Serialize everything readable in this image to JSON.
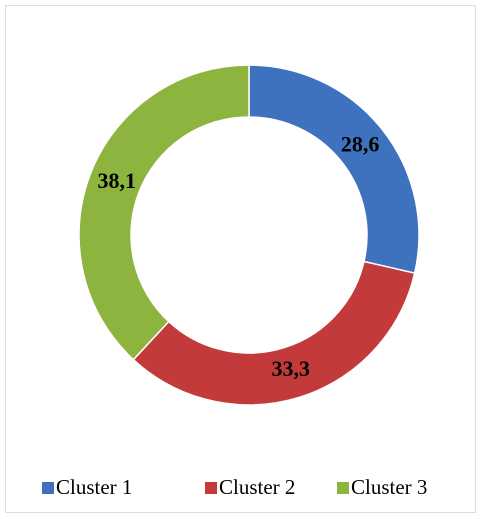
{
  "chart_data": {
    "type": "donut",
    "categories": [
      "Cluster 1",
      "Cluster 2",
      "Cluster 3"
    ],
    "values": [
      28.6,
      33.3,
      38.1
    ],
    "value_labels": [
      "28,6",
      "33,3",
      "38,1"
    ],
    "colors": [
      "#3f72be",
      "#c23b3a",
      "#8cb43f"
    ],
    "legend": "bottom"
  }
}
